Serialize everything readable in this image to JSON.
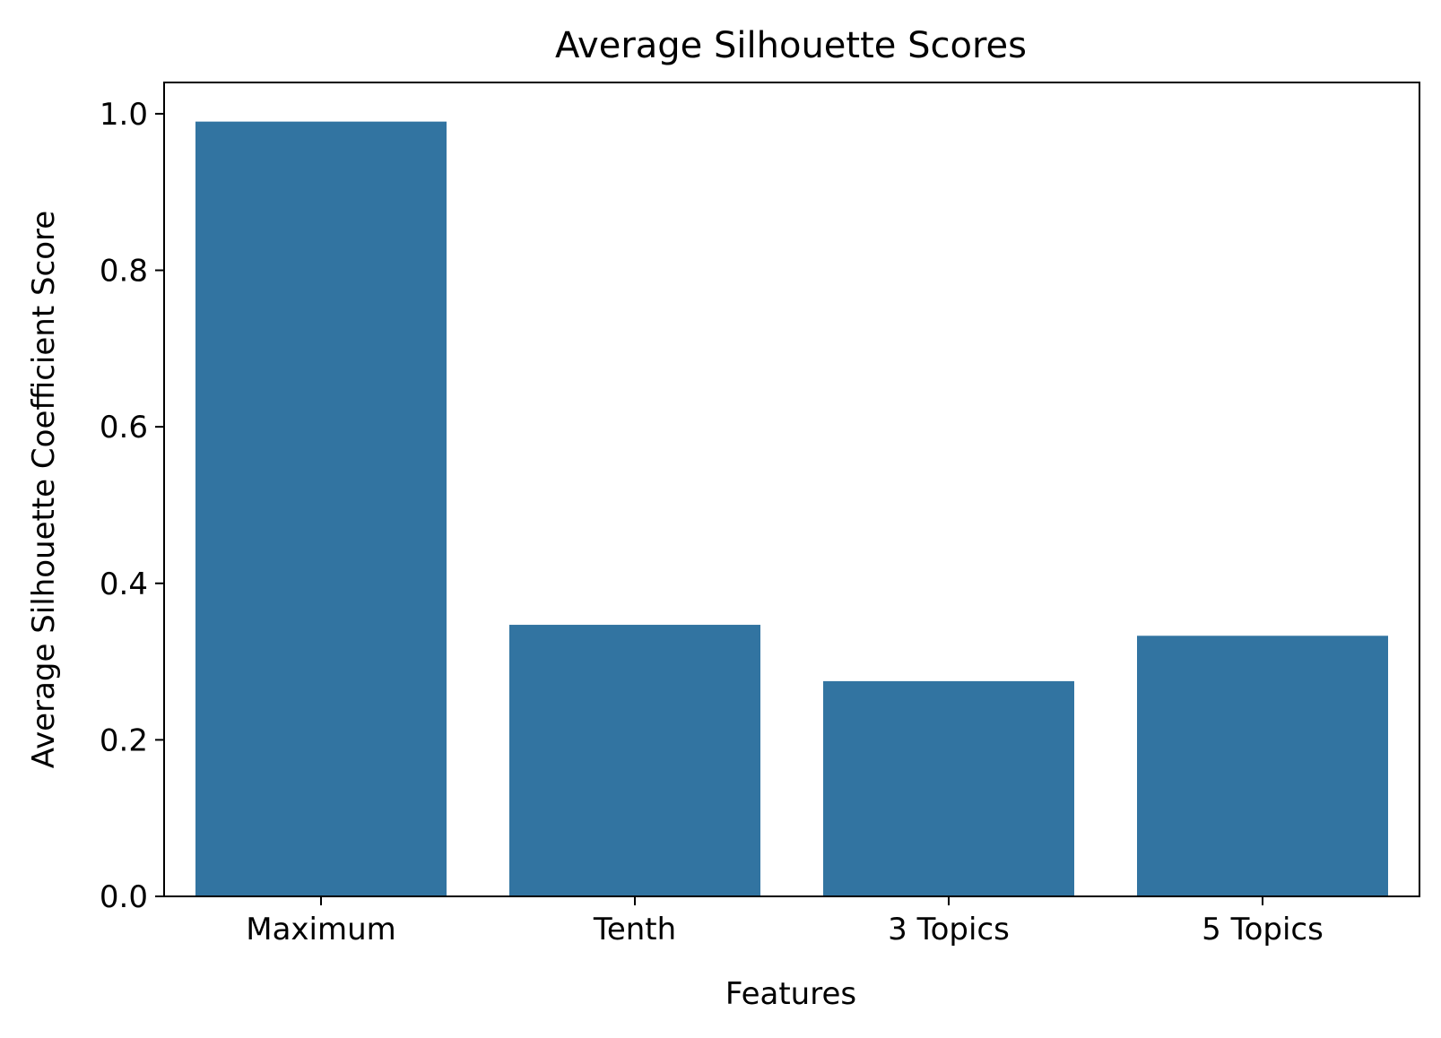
{
  "chart_data": {
    "type": "bar",
    "title": "Average Silhouette Scores",
    "xlabel": "Features",
    "ylabel": "Average Silhouette Coefficient Score",
    "categories": [
      "Maximum",
      "Tenth",
      "3 Topics",
      "5 Topics"
    ],
    "values": [
      0.99,
      0.347,
      0.275,
      0.333
    ],
    "ylim": [
      0,
      1.04
    ],
    "yticks": [
      0.0,
      0.2,
      0.4,
      0.6,
      0.8,
      1.0
    ],
    "ytick_labels": [
      "0.0",
      "0.2",
      "0.4",
      "0.6",
      "0.8",
      "1.0"
    ],
    "grid": false,
    "legend": "none",
    "colors": {
      "bar": "#3274a1",
      "axis": "#000000",
      "background": "#ffffff"
    }
  }
}
